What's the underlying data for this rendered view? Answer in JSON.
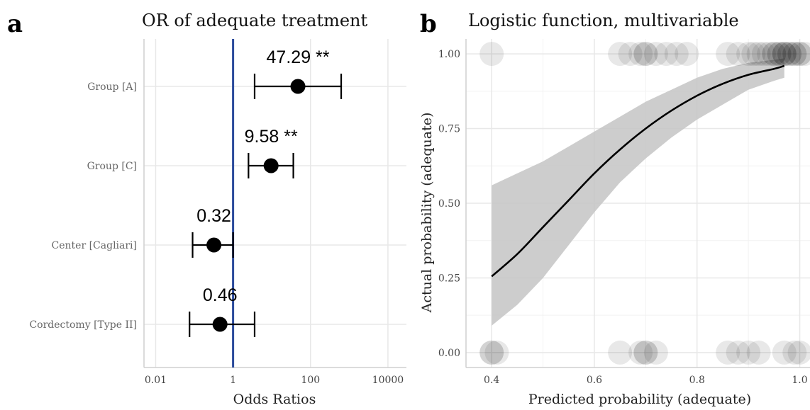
{
  "chart_data": [
    {
      "panel": "a",
      "type": "forest",
      "title": "OR of adequate treatment",
      "xlabel": "Odds Ratios",
      "xscale": "log10",
      "xlim": [
        0.005,
        30000
      ],
      "xticks": [
        0.01,
        1,
        100,
        10000
      ],
      "xtick_labels": [
        "0.01",
        "1",
        "100",
        "10000"
      ],
      "reference_line": 1,
      "reference_color": "#2b4a9b",
      "terms": [
        {
          "label": "Group [A]",
          "estimate": 47.29,
          "ci_low": 3.6,
          "ci_high": 620,
          "estimate_label": "47.29 **"
        },
        {
          "label": "Group [C]",
          "estimate": 9.58,
          "ci_low": 2.5,
          "ci_high": 36,
          "estimate_label": "9.58 **"
        },
        {
          "label": "Center [Cagliari]",
          "estimate": 0.32,
          "ci_low": 0.09,
          "ci_high": 1.0,
          "estimate_label": "0.32"
        },
        {
          "label": "Cordectomy [Type II]",
          "estimate": 0.46,
          "ci_low": 0.075,
          "ci_high": 3.6,
          "estimate_label": "0.46"
        }
      ]
    },
    {
      "panel": "b",
      "type": "line",
      "title": "Logistic function, multivariable",
      "xlabel": "Predicted probability (adequate)",
      "ylabel": "Actual probability (adequate)",
      "xlim": [
        0.35,
        1.02
      ],
      "ylim": [
        -0.05,
        1.05
      ],
      "xticks": [
        0.4,
        0.6,
        0.8,
        1.0
      ],
      "xtick_labels": [
        "0.4",
        "0.6",
        "0.8",
        "1.0"
      ],
      "yticks": [
        0.0,
        0.25,
        0.5,
        0.75,
        1.0
      ],
      "ytick_labels": [
        "0.00",
        "0.25",
        "0.50",
        "0.75",
        "1.00"
      ],
      "curve": {
        "x": [
          0.4,
          0.45,
          0.5,
          0.55,
          0.6,
          0.65,
          0.7,
          0.75,
          0.8,
          0.85,
          0.9,
          0.95,
          0.97
        ],
        "y": [
          0.255,
          0.33,
          0.42,
          0.51,
          0.6,
          0.68,
          0.75,
          0.81,
          0.86,
          0.9,
          0.93,
          0.95,
          0.96
        ],
        "ci_low": [
          0.09,
          0.16,
          0.25,
          0.36,
          0.47,
          0.57,
          0.65,
          0.72,
          0.78,
          0.83,
          0.88,
          0.91,
          0.92
        ],
        "ci_high": [
          0.56,
          0.6,
          0.64,
          0.69,
          0.74,
          0.79,
          0.84,
          0.88,
          0.92,
          0.95,
          0.97,
          0.98,
          0.985
        ]
      },
      "points_y1": [
        0.4,
        0.65,
        0.67,
        0.69,
        0.7,
        0.7,
        0.72,
        0.74,
        0.76,
        0.78,
        0.86,
        0.88,
        0.9,
        0.91,
        0.92,
        0.93,
        0.94,
        0.95,
        0.95,
        0.96,
        0.96,
        0.97,
        0.97,
        0.97,
        0.98,
        0.98,
        0.99,
        0.99,
        1.0,
        1.0,
        1.01
      ],
      "points_y0": [
        0.4,
        0.4,
        0.41,
        0.65,
        0.69,
        0.7,
        0.7,
        0.72,
        0.86,
        0.88,
        0.9,
        0.92,
        0.97,
        0.99,
        1.0
      ]
    }
  ]
}
